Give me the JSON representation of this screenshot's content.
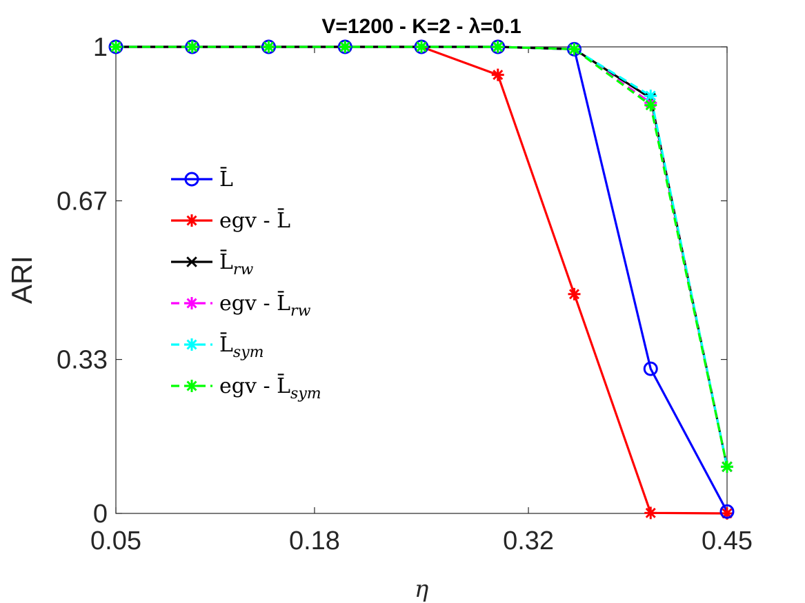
{
  "chart_data": {
    "type": "line",
    "title": "V=1200 - K=2 - λ=0.1",
    "xlabel": "η",
    "ylabel": "ARI",
    "xlim": [
      0.05,
      0.45
    ],
    "ylim": [
      0,
      1
    ],
    "xticks": [
      0.05,
      0.18,
      0.32,
      0.45
    ],
    "xtick_labels": [
      "0.05",
      "0.18",
      "0.32",
      "0.45"
    ],
    "yticks": [
      0,
      0.33,
      0.67,
      1
    ],
    "ytick_labels": [
      "0",
      "0.33",
      "0.67",
      "1"
    ],
    "x": [
      0.05,
      0.1,
      0.15,
      0.2,
      0.25,
      0.3,
      0.35,
      0.4,
      0.45
    ],
    "legend_position": "center-left",
    "series": [
      {
        "name": "L̄",
        "legend_label": "L̄",
        "color": "#0000ff",
        "marker": "circle",
        "dash": "solid",
        "values": [
          1,
          1,
          1,
          1,
          1,
          1,
          0.995,
          0.31,
          0.004
        ]
      },
      {
        "name": "egv - L̄",
        "legend_label": "egv - L̄",
        "color": "#ff0000",
        "marker": "star",
        "dash": "solid",
        "values": [
          1,
          1,
          1,
          1,
          1,
          0.94,
          0.47,
          0.001,
          0.0
        ]
      },
      {
        "name": "L̄rw",
        "legend_label": "L̄",
        "legend_sub": "rw",
        "color": "#000000",
        "marker": "cross",
        "dash": "solid",
        "values": [
          1,
          1,
          1,
          1,
          1,
          1,
          0.995,
          0.89,
          0.1
        ]
      },
      {
        "name": "egv - L̄rw",
        "legend_label": "egv - L̄",
        "legend_sub": "rw",
        "color": "#ff00ff",
        "marker": "star",
        "dash": "dashed",
        "values": [
          1,
          1,
          1,
          1,
          1,
          1,
          0.995,
          0.88,
          0.1
        ]
      },
      {
        "name": "L̄sym",
        "legend_label": "L̄",
        "legend_sub": "sym",
        "color": "#00ffff",
        "marker": "star",
        "dash": "dashed",
        "values": [
          1,
          1,
          1,
          1,
          1,
          1,
          0.995,
          0.895,
          0.1
        ]
      },
      {
        "name": "egv - L̄sym",
        "legend_label": "egv - L̄",
        "legend_sub": "sym",
        "color": "#00ff00",
        "marker": "star",
        "dash": "dashed",
        "values": [
          1,
          1,
          1,
          1,
          1,
          1,
          0.995,
          0.875,
          0.1
        ]
      }
    ]
  }
}
